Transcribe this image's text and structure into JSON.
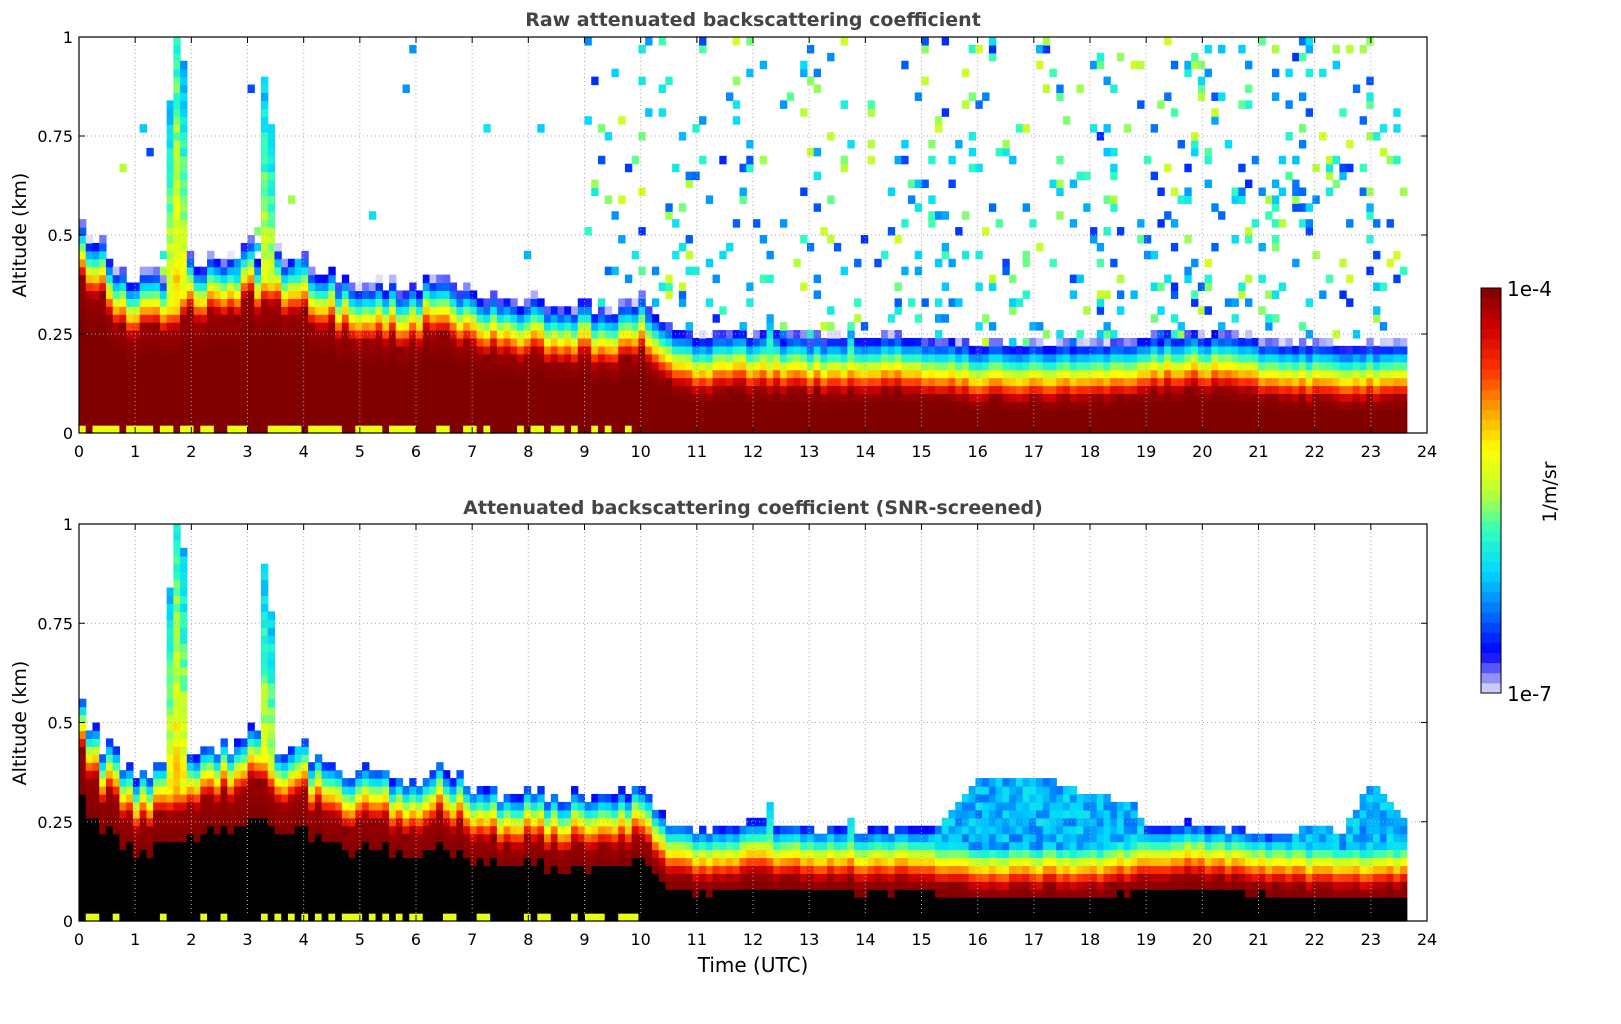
{
  "chart_data": [
    {
      "type": "heatmap",
      "title": "Raw attenuated backscattering coefficient",
      "xlabel": "",
      "ylabel": "Altitude (km)",
      "xlim": [
        0,
        24
      ],
      "ylim": [
        0,
        1
      ],
      "x_ticks": [
        "0",
        "1",
        "2",
        "3",
        "4",
        "5",
        "6",
        "7",
        "8",
        "9",
        "10",
        "11",
        "12",
        "13",
        "14",
        "15",
        "16",
        "17",
        "18",
        "19",
        "20",
        "21",
        "22",
        "23",
        "24"
      ],
      "y_ticks": [
        "0",
        "0.25",
        "0.5",
        "0.75",
        "1"
      ],
      "grid": true,
      "screened": false
    },
    {
      "type": "heatmap",
      "title": "Attenuated backscattering coefficient (SNR-screened)",
      "xlabel": "Time (UTC)",
      "ylabel": "Altitude (km)",
      "xlim": [
        0,
        24
      ],
      "ylim": [
        0,
        1
      ],
      "x_ticks": [
        "0",
        "1",
        "2",
        "3",
        "4",
        "5",
        "6",
        "7",
        "8",
        "9",
        "10",
        "11",
        "12",
        "13",
        "14",
        "15",
        "16",
        "17",
        "18",
        "19",
        "20",
        "21",
        "22",
        "23",
        "24"
      ],
      "y_ticks": [
        "0",
        "0.25",
        "0.5",
        "0.75",
        "1"
      ],
      "grid": true,
      "screened": true
    }
  ],
  "field": {
    "data_end_hour": 23.6,
    "times_h": [
      0,
      0.5,
      1,
      1.5,
      2,
      2.5,
      3,
      3.5,
      4,
      4.5,
      5,
      5.5,
      6,
      6.5,
      7,
      7.5,
      8,
      8.5,
      9,
      9.5,
      10,
      10.5,
      11,
      12,
      13,
      14,
      15,
      16,
      17,
      18,
      19,
      20,
      21,
      22,
      23,
      23.6
    ],
    "layer_top_km": [
      0.42,
      0.3,
      0.24,
      0.26,
      0.3,
      0.3,
      0.33,
      0.32,
      0.3,
      0.26,
      0.24,
      0.24,
      0.22,
      0.26,
      0.2,
      0.19,
      0.19,
      0.18,
      0.18,
      0.17,
      0.2,
      0.12,
      0.1,
      0.11,
      0.1,
      0.1,
      0.1,
      0.08,
      0.08,
      0.08,
      0.1,
      0.11,
      0.09,
      0.08,
      0.08,
      0.08
    ],
    "clouds": [
      {
        "center_h": 1.75,
        "width_h": 0.22,
        "top_km": 1.2
      },
      {
        "center_h": 3.35,
        "width_h": 0.13,
        "top_km": 1.05
      },
      {
        "center_h": 2.9,
        "width_h": 0.5,
        "top_km": 0.45
      },
      {
        "center_h": 3.9,
        "width_h": 0.25,
        "top_km": 0.45
      },
      {
        "center_h": 12.3,
        "width_h": 0.1,
        "top_km": 0.3
      },
      {
        "center_h": 13.7,
        "width_h": 0.1,
        "top_km": 0.3
      }
    ],
    "screened_blue_top": {
      "times_h": [
        14,
        15,
        15.6,
        16,
        17,
        18,
        18.8,
        19,
        21,
        21.3,
        22,
        22.5,
        23,
        23.6
      ],
      "top_km": [
        0.2,
        0.2,
        0.3,
        0.35,
        0.37,
        0.32,
        0.3,
        0.21,
        0.2,
        0.2,
        0.25,
        0.22,
        0.35,
        0.25
      ]
    }
  },
  "colorbar": {
    "label": "1/m/sr",
    "max_label": "1e-4",
    "min_label": "1e-7",
    "log_min": -7,
    "log_max": -4,
    "stops": [
      "#e8e8fa",
      "#0000ff",
      "#0070ff",
      "#00d8ff",
      "#30ffc0",
      "#c0ff30",
      "#ffff00",
      "#ffa000",
      "#ff3000",
      "#d00000",
      "#800000"
    ],
    "saturated_screened_color": "#000000"
  }
}
